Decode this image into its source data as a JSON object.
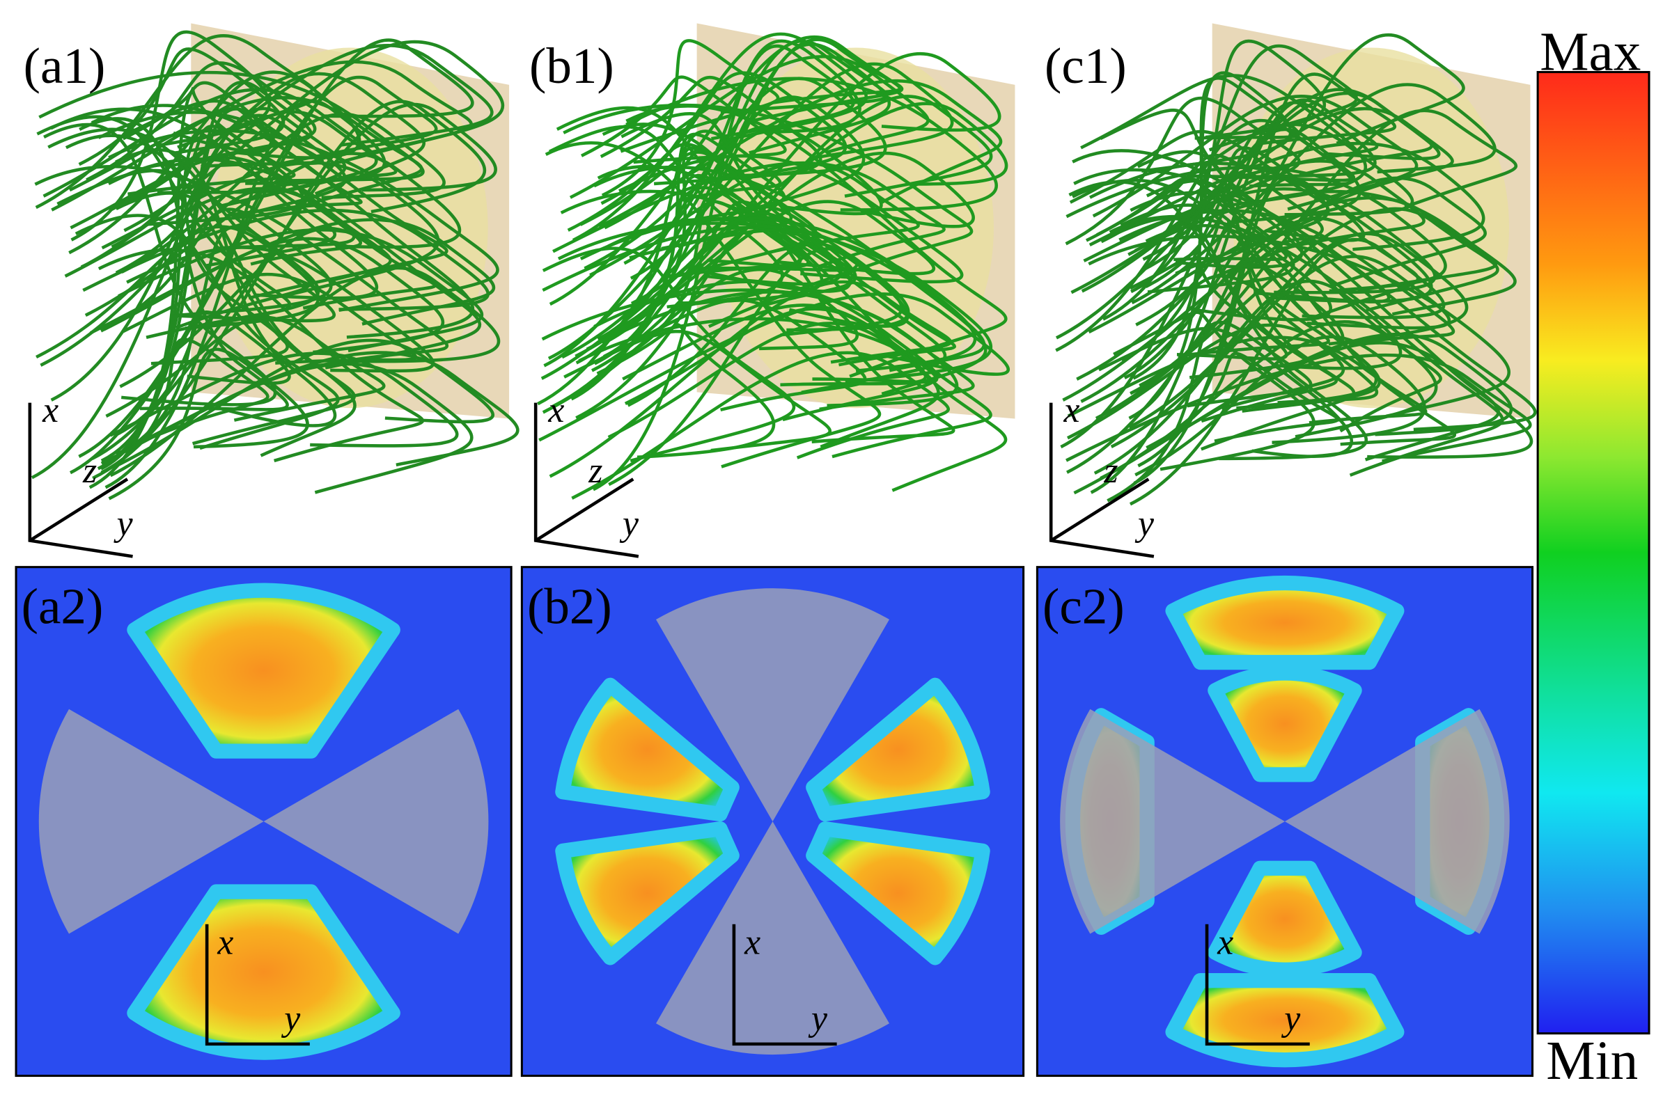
{
  "panels": [
    {
      "label": "(a1)",
      "axes": [
        "x",
        "z",
        "y"
      ]
    },
    {
      "label": "(b1)",
      "axes": [
        "x",
        "z",
        "y"
      ]
    },
    {
      "label": "(c1)",
      "axes": [
        "x",
        "z",
        "y"
      ]
    },
    {
      "label": "(a2)",
      "axes": [
        "x",
        "y"
      ]
    },
    {
      "label": "(b2)",
      "axes": [
        "x",
        "y"
      ]
    },
    {
      "label": "(c2)",
      "axes": [
        "x",
        "y"
      ]
    }
  ],
  "colorbar": {
    "max": "Max",
    "min": "Min"
  }
}
